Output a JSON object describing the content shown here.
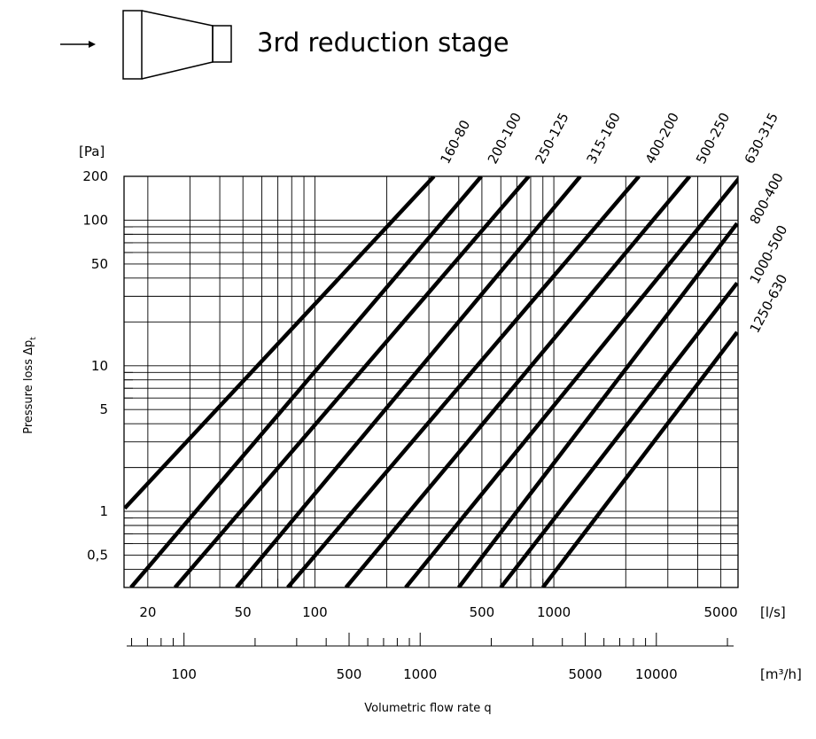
{
  "header": {
    "title": "3rd reduction stage"
  },
  "chart_data": {
    "type": "line",
    "title": "3rd reduction stage",
    "ylabel": "Pressure loss Δp",
    "ylabel_subscript": "t",
    "xlabel": "Volumetric flow rate q",
    "y_unit": "[Pa]",
    "x_unit": "[l/s]",
    "x2_unit": "[m³/h]",
    "x_scale": "log",
    "y_scale": "log",
    "xlim": [
      15.9,
      5900
    ],
    "ylim": [
      0.3,
      200
    ],
    "x2lim": [
      57.2,
      21240
    ],
    "grid": true,
    "y_ticks": [
      {
        "value": 200,
        "label": "200"
      },
      {
        "value": 100,
        "label": "100"
      },
      {
        "value": 50,
        "label": "50"
      },
      {
        "value": 10,
        "label": "10"
      },
      {
        "value": 5,
        "label": "5"
      },
      {
        "value": 1,
        "label": "1"
      },
      {
        "value": 0.5,
        "label": "0,5"
      }
    ],
    "x_ticks": [
      {
        "value": 20,
        "label": "20"
      },
      {
        "value": 50,
        "label": "50"
      },
      {
        "value": 100,
        "label": "100"
      },
      {
        "value": 500,
        "label": "500"
      },
      {
        "value": 1000,
        "label": "1000"
      },
      {
        "value": 5000,
        "label": "5000"
      }
    ],
    "x2_ticks": [
      {
        "value": 100,
        "label": "100"
      },
      {
        "value": 500,
        "label": "500"
      },
      {
        "value": 1000,
        "label": "1000"
      },
      {
        "value": 5000,
        "label": "5000"
      },
      {
        "value": 10000,
        "label": "10000"
      }
    ],
    "series": [
      {
        "name": "160-80",
        "x": [
          16,
          315
        ],
        "y": [
          1.05,
          200
        ]
      },
      {
        "name": "200-100",
        "x": [
          17,
          497
        ],
        "y": [
          0.3,
          200
        ]
      },
      {
        "name": "250-125",
        "x": [
          26,
          785
        ],
        "y": [
          0.3,
          200
        ]
      },
      {
        "name": "315-160",
        "x": [
          47,
          1290
        ],
        "y": [
          0.3,
          200
        ]
      },
      {
        "name": "400-200",
        "x": [
          77,
          2270
        ],
        "y": [
          0.3,
          200
        ]
      },
      {
        "name": "500-250",
        "x": [
          135,
          3700
        ],
        "y": [
          0.3,
          200
        ]
      },
      {
        "name": "630-315",
        "x": [
          240,
          6050
        ],
        "y": [
          0.3,
          200
        ]
      },
      {
        "name": "800-400",
        "x": [
          400,
          5850
        ],
        "y": [
          0.3,
          95
        ]
      },
      {
        "name": "1000-500",
        "x": [
          600,
          5850
        ],
        "y": [
          0.3,
          37
        ]
      },
      {
        "name": "1250-630",
        "x": [
          900,
          5850
        ],
        "y": [
          0.3,
          17
        ]
      }
    ]
  }
}
